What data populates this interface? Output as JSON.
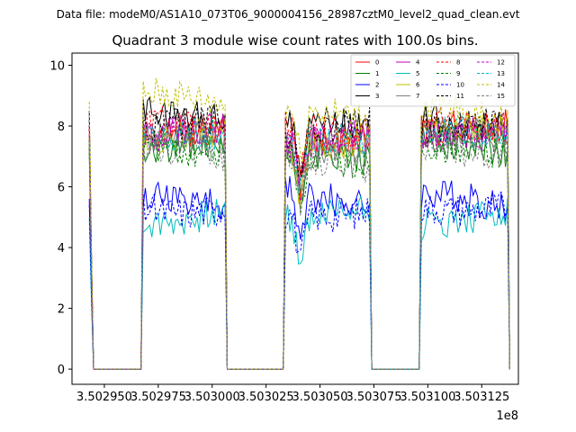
{
  "figure": {
    "suptitle": "Data file: modeM0/AS1A10_073T06_9000004156_28987cztM0_level2_quad_clean.evt"
  },
  "chart_data": {
    "type": "line",
    "title": "Quadrant 3 module wise count rates with 100.0s bins.",
    "xlabel": "",
    "ylabel": "",
    "x_offset_label": "1e8",
    "x_unit_scale": 100000000,
    "xlim": [
      350293500,
      350314200
    ],
    "ylim": [
      -0.5,
      10.4
    ],
    "x_ticks": [
      350295000,
      350297500,
      350300000,
      350302500,
      350305000,
      350307500,
      350310000,
      350312500
    ],
    "x_tick_labels": [
      "3.502950",
      "3.502975",
      "3.503000",
      "3.503025",
      "3.503050",
      "3.503075",
      "3.503100",
      "3.503125"
    ],
    "y_ticks": [
      0,
      2,
      4,
      6,
      8,
      10
    ],
    "y_tick_labels": [
      "0",
      "2",
      "4",
      "6",
      "8",
      "10"
    ],
    "legend_location": "upper-right",
    "legend_columns": 4,
    "bin_seconds": 100,
    "gti_segments": [
      {
        "start": 350294300,
        "end": 350300900,
        "on_start": 350296800,
        "on_end": 350300600
      },
      {
        "start": 350300900,
        "end": 350307600,
        "on_start": 350303400,
        "on_end": 350307300
      },
      {
        "start": 350307600,
        "end": 350313800,
        "on_start": 350309700,
        "on_end": 350313700
      }
    ],
    "series": [
      {
        "name": "0",
        "color": "#ff0000",
        "dash": "solid",
        "level": [
          7.6,
          7.3,
          7.8
        ]
      },
      {
        "name": "1",
        "color": "#008000",
        "dash": "solid",
        "level": [
          7.1,
          6.8,
          7.2
        ]
      },
      {
        "name": "2",
        "color": "#0000ff",
        "dash": "solid",
        "level": [
          5.6,
          5.6,
          5.6
        ]
      },
      {
        "name": "3",
        "color": "#000000",
        "dash": "solid",
        "level": [
          8.5,
          8.3,
          8.2
        ]
      },
      {
        "name": "4",
        "color": "#bf00bf",
        "dash": "solid",
        "level": [
          8.0,
          7.7,
          7.9
        ]
      },
      {
        "name": "5",
        "color": "#00bfbf",
        "dash": "solid",
        "level": [
          5.0,
          5.2,
          5.0
        ]
      },
      {
        "name": "6",
        "color": "#bfbf00",
        "dash": "solid",
        "level": [
          7.6,
          7.2,
          7.7
        ]
      },
      {
        "name": "7",
        "color": "#808080",
        "dash": "solid",
        "level": [
          7.4,
          7.0,
          7.5
        ]
      },
      {
        "name": "8",
        "color": "#ff0000",
        "dash": "dashed",
        "level": [
          7.9,
          7.7,
          8.0
        ]
      },
      {
        "name": "9",
        "color": "#008000",
        "dash": "dashed",
        "level": [
          7.3,
          7.0,
          7.4
        ]
      },
      {
        "name": "10",
        "color": "#0000ff",
        "dash": "dashed",
        "level": [
          5.4,
          5.3,
          5.5
        ]
      },
      {
        "name": "11",
        "color": "#000000",
        "dash": "dashed",
        "level": [
          8.2,
          8.0,
          8.1
        ]
      },
      {
        "name": "12",
        "color": "#bf00bf",
        "dash": "dashed",
        "level": [
          7.7,
          7.5,
          7.7
        ]
      },
      {
        "name": "13",
        "color": "#00bfbf",
        "dash": "dashed",
        "level": [
          7.5,
          7.3,
          7.6
        ]
      },
      {
        "name": "14",
        "color": "#bfbf00",
        "dash": "dashed",
        "level": [
          8.8,
          8.3,
          8.3
        ]
      },
      {
        "name": "15",
        "color": "#808080",
        "dash": "dashed",
        "level": [
          7.2,
          6.9,
          7.3
        ]
      }
    ]
  }
}
